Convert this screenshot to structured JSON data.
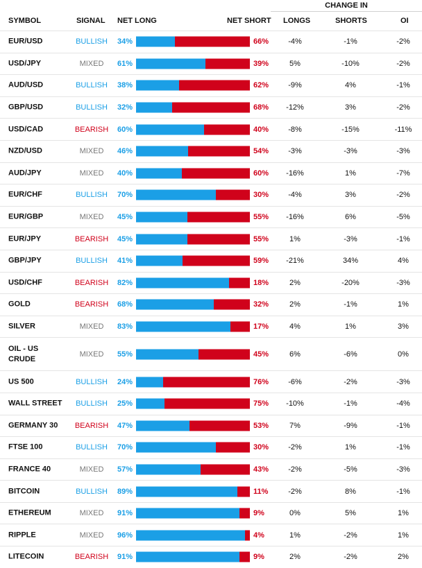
{
  "headers": {
    "symbol": "SYMBOL",
    "signal": "SIGNAL",
    "net_long": "NET LONG",
    "net_short": "NET SHORT",
    "change_in": "CHANGE IN",
    "longs": "LONGS",
    "shorts": "SHORTS",
    "oi": "OI"
  },
  "colors": {
    "long": "#1b9fe6",
    "short": "#d0021b",
    "mixed": "#777777"
  },
  "rows": [
    {
      "symbol": "EUR/USD",
      "signal": "BULLISH",
      "net_long": "34%",
      "long_pct": 34,
      "net_short": "66%",
      "longs": "-4%",
      "shorts": "-1%",
      "oi": "-2%"
    },
    {
      "symbol": "USD/JPY",
      "signal": "MIXED",
      "net_long": "61%",
      "long_pct": 61,
      "net_short": "39%",
      "longs": "5%",
      "shorts": "-10%",
      "oi": "-2%"
    },
    {
      "symbol": "AUD/USD",
      "signal": "BULLISH",
      "net_long": "38%",
      "long_pct": 38,
      "net_short": "62%",
      "longs": "-9%",
      "shorts": "4%",
      "oi": "-1%"
    },
    {
      "symbol": "GBP/USD",
      "signal": "BULLISH",
      "net_long": "32%",
      "long_pct": 32,
      "net_short": "68%",
      "longs": "-12%",
      "shorts": "3%",
      "oi": "-2%"
    },
    {
      "symbol": "USD/CAD",
      "signal": "BEARISH",
      "net_long": "60%",
      "long_pct": 60,
      "net_short": "40%",
      "longs": "-8%",
      "shorts": "-15%",
      "oi": "-11%"
    },
    {
      "symbol": "NZD/USD",
      "signal": "MIXED",
      "net_long": "46%",
      "long_pct": 46,
      "net_short": "54%",
      "longs": "-3%",
      "shorts": "-3%",
      "oi": "-3%"
    },
    {
      "symbol": "AUD/JPY",
      "signal": "MIXED",
      "net_long": "40%",
      "long_pct": 40,
      "net_short": "60%",
      "longs": "-16%",
      "shorts": "1%",
      "oi": "-7%"
    },
    {
      "symbol": "EUR/CHF",
      "signal": "BULLISH",
      "net_long": "70%",
      "long_pct": 70,
      "net_short": "30%",
      "longs": "-4%",
      "shorts": "3%",
      "oi": "-2%"
    },
    {
      "symbol": "EUR/GBP",
      "signal": "MIXED",
      "net_long": "45%",
      "long_pct": 45,
      "net_short": "55%",
      "longs": "-16%",
      "shorts": "6%",
      "oi": "-5%"
    },
    {
      "symbol": "EUR/JPY",
      "signal": "BEARISH",
      "net_long": "45%",
      "long_pct": 45,
      "net_short": "55%",
      "longs": "1%",
      "shorts": "-3%",
      "oi": "-1%"
    },
    {
      "symbol": "GBP/JPY",
      "signal": "BULLISH",
      "net_long": "41%",
      "long_pct": 41,
      "net_short": "59%",
      "longs": "-21%",
      "shorts": "34%",
      "oi": "4%"
    },
    {
      "symbol": "USD/CHF",
      "signal": "BEARISH",
      "net_long": "82%",
      "long_pct": 82,
      "net_short": "18%",
      "longs": "2%",
      "shorts": "-20%",
      "oi": "-3%"
    },
    {
      "symbol": "GOLD",
      "signal": "BEARISH",
      "net_long": "68%",
      "long_pct": 68,
      "net_short": "32%",
      "longs": "2%",
      "shorts": "-1%",
      "oi": "1%"
    },
    {
      "symbol": "SILVER",
      "signal": "MIXED",
      "net_long": "83%",
      "long_pct": 83,
      "net_short": "17%",
      "longs": "4%",
      "shorts": "1%",
      "oi": "3%"
    },
    {
      "symbol": "OIL - US CRUDE",
      "signal": "MIXED",
      "net_long": "55%",
      "long_pct": 55,
      "net_short": "45%",
      "longs": "6%",
      "shorts": "-6%",
      "oi": "0%"
    },
    {
      "symbol": "US 500",
      "signal": "BULLISH",
      "net_long": "24%",
      "long_pct": 24,
      "net_short": "76%",
      "longs": "-6%",
      "shorts": "-2%",
      "oi": "-3%"
    },
    {
      "symbol": "WALL STREET",
      "signal": "BULLISH",
      "net_long": "25%",
      "long_pct": 25,
      "net_short": "75%",
      "longs": "-10%",
      "shorts": "-1%",
      "oi": "-4%"
    },
    {
      "symbol": "GERMANY 30",
      "signal": "BEARISH",
      "net_long": "47%",
      "long_pct": 47,
      "net_short": "53%",
      "longs": "7%",
      "shorts": "-9%",
      "oi": "-1%"
    },
    {
      "symbol": "FTSE 100",
      "signal": "BULLISH",
      "net_long": "70%",
      "long_pct": 70,
      "net_short": "30%",
      "longs": "-2%",
      "shorts": "1%",
      "oi": "-1%"
    },
    {
      "symbol": "FRANCE 40",
      "signal": "MIXED",
      "net_long": "57%",
      "long_pct": 57,
      "net_short": "43%",
      "longs": "-2%",
      "shorts": "-5%",
      "oi": "-3%"
    },
    {
      "symbol": "BITCOIN",
      "signal": "BULLISH",
      "net_long": "89%",
      "long_pct": 89,
      "net_short": "11%",
      "longs": "-2%",
      "shorts": "8%",
      "oi": "-1%"
    },
    {
      "symbol": "ETHEREUM",
      "signal": "MIXED",
      "net_long": "91%",
      "long_pct": 91,
      "net_short": "9%",
      "longs": "0%",
      "shorts": "5%",
      "oi": "1%"
    },
    {
      "symbol": "RIPPLE",
      "signal": "MIXED",
      "net_long": "96%",
      "long_pct": 96,
      "net_short": "4%",
      "longs": "1%",
      "shorts": "-2%",
      "oi": "1%"
    },
    {
      "symbol": "LITECOIN",
      "signal": "BEARISH",
      "net_long": "91%",
      "long_pct": 91,
      "net_short": "9%",
      "longs": "2%",
      "shorts": "-2%",
      "oi": "2%"
    }
  ]
}
